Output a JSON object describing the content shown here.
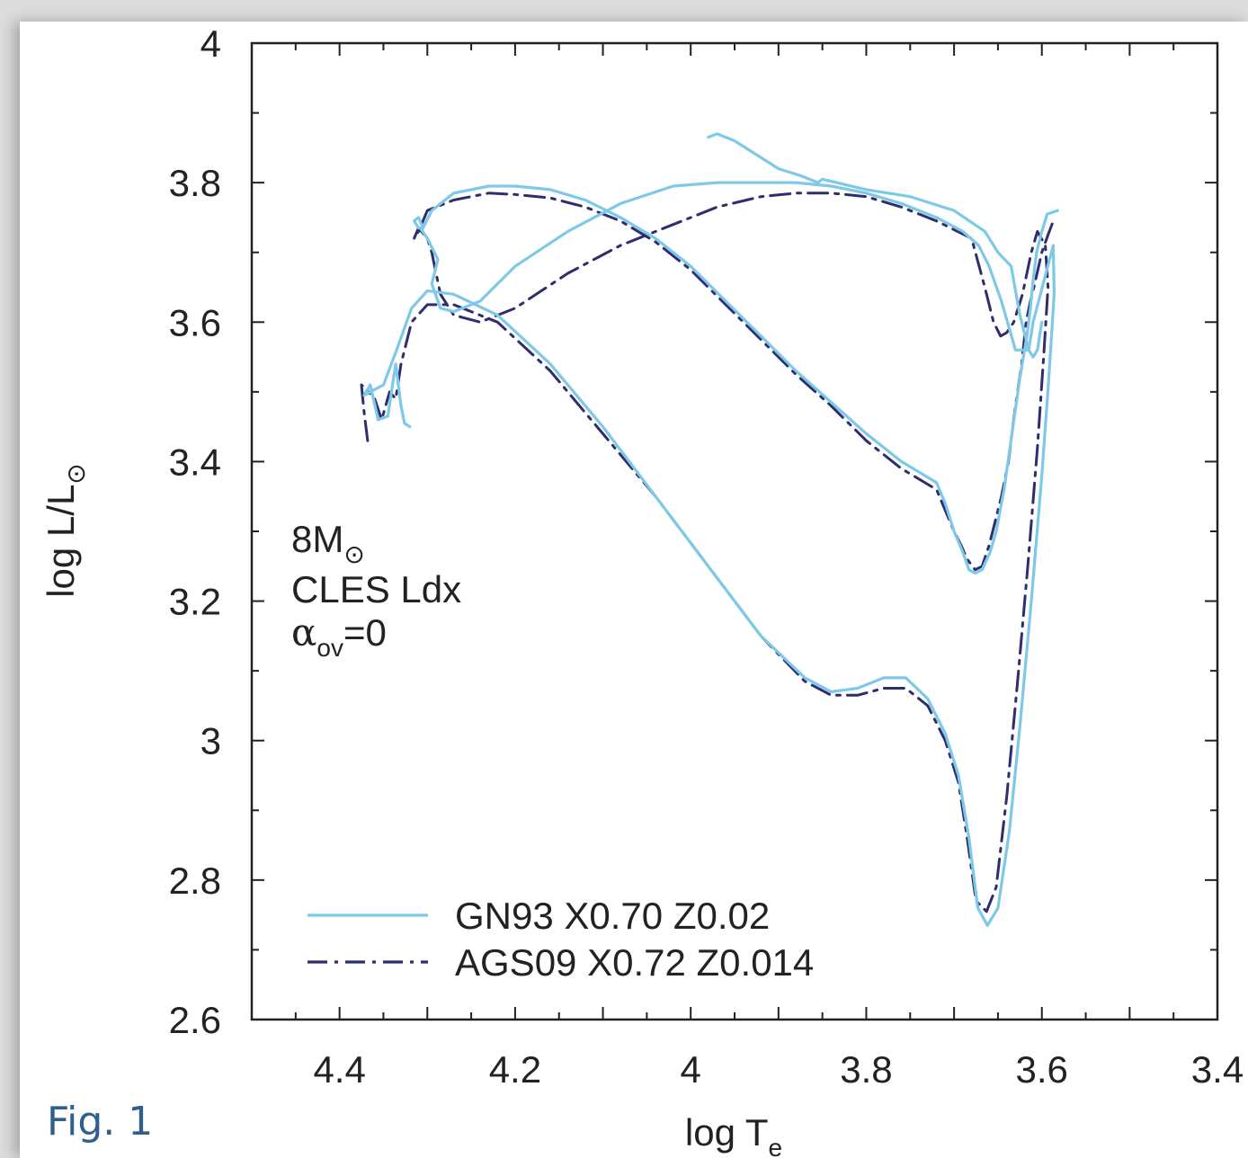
{
  "figure_label": "Fig. 1",
  "chart_data": {
    "type": "line",
    "title": "",
    "xlabel": "log T",
    "xlabel_sub": "e",
    "ylabel": "log L/L",
    "ylabel_sub": "⊙",
    "xlim": [
      4.5,
      3.4
    ],
    "ylim": [
      2.6,
      4.0
    ],
    "x_reversed": true,
    "xticks": [
      "4.4",
      "4.2",
      "4",
      "3.8",
      "3.6",
      "3.4"
    ],
    "xtick_values": [
      4.4,
      4.2,
      4.0,
      3.8,
      3.6,
      3.4
    ],
    "yticks": [
      "4",
      "3.8",
      "3.6",
      "3.4",
      "3.2",
      "3",
      "2.8",
      "2.6"
    ],
    "ytick_values": [
      4.0,
      3.8,
      3.6,
      3.4,
      3.2,
      3.0,
      2.8,
      2.6
    ],
    "grid": false,
    "annotation": {
      "line1": "8M",
      "line1_sub": "⊙",
      "line2": "CLES Ldx",
      "line3_greek": "α",
      "line3_sub": "ov",
      "line3_rest": "=0"
    },
    "legend_position": "bottom-left",
    "series": [
      {
        "name": "GN93 X0.70 Z0.02",
        "color": "#7ec8e8",
        "style": "solid",
        "x": [
          4.32,
          4.326,
          4.33,
          4.336,
          4.345,
          4.356,
          4.365,
          4.372,
          4.365,
          4.35,
          4.335,
          4.318,
          4.3,
          4.27,
          4.22,
          4.16,
          4.1,
          4.04,
          3.98,
          3.92,
          3.87,
          3.84,
          3.81,
          3.78,
          3.755,
          3.73,
          3.71,
          3.695,
          3.683,
          3.673,
          3.662,
          3.65,
          3.637,
          3.625,
          3.612,
          3.6,
          3.592,
          3.586,
          3.587,
          3.61,
          3.615,
          3.63,
          3.646,
          3.66,
          3.672,
          3.69,
          3.72,
          3.76,
          3.8,
          3.84,
          3.88,
          3.92,
          3.97,
          4.02,
          4.08,
          4.14,
          4.2,
          4.24,
          4.27,
          4.285,
          4.295,
          4.288,
          4.3,
          4.308,
          4.31,
          4.315,
          4.31,
          4.305,
          4.295,
          4.27,
          4.23,
          4.2,
          4.16,
          4.12,
          4.08,
          4.04,
          4.0,
          3.96,
          3.92,
          3.88,
          3.84,
          3.8,
          3.76,
          3.72,
          3.71,
          3.7,
          3.69,
          3.683,
          3.676,
          3.668,
          3.659,
          3.652,
          3.643,
          3.634,
          3.625,
          3.617,
          3.613,
          3.61,
          3.606,
          3.6,
          3.594,
          3.582
        ],
        "y": [
          3.45,
          3.455,
          3.48,
          3.54,
          3.465,
          3.46,
          3.51,
          3.495,
          3.5,
          3.51,
          3.56,
          3.62,
          3.645,
          3.64,
          3.61,
          3.54,
          3.45,
          3.35,
          3.25,
          3.15,
          3.09,
          3.07,
          3.075,
          3.09,
          3.09,
          3.06,
          3.01,
          2.95,
          2.86,
          2.76,
          2.735,
          2.76,
          2.87,
          3.02,
          3.2,
          3.38,
          3.52,
          3.64,
          3.71,
          3.6,
          3.56,
          3.56,
          3.63,
          3.68,
          3.71,
          3.73,
          3.75,
          3.77,
          3.785,
          3.795,
          3.8,
          3.8,
          3.8,
          3.795,
          3.77,
          3.73,
          3.68,
          3.63,
          3.615,
          3.62,
          3.655,
          3.69,
          3.72,
          3.735,
          3.735,
          3.745,
          3.75,
          3.735,
          3.76,
          3.785,
          3.795,
          3.795,
          3.79,
          3.775,
          3.75,
          3.72,
          3.68,
          3.63,
          3.58,
          3.53,
          3.485,
          3.44,
          3.4,
          3.37,
          3.34,
          3.3,
          3.27,
          3.245,
          3.24,
          3.245,
          3.27,
          3.3,
          3.36,
          3.44,
          3.52,
          3.58,
          3.62,
          3.66,
          3.7,
          3.73,
          3.755,
          3.76
        ]
      },
      {
        "name": "AGS09 X0.72 Z0.014",
        "color": "#2e2e6e",
        "style": "dashdot",
        "x": [
          4.368,
          4.372,
          4.375,
          4.367,
          4.36,
          4.352,
          4.343,
          4.336,
          4.33,
          4.318,
          4.3,
          4.27,
          4.22,
          4.16,
          4.1,
          4.04,
          3.98,
          3.92,
          3.87,
          3.84,
          3.81,
          3.78,
          3.755,
          3.73,
          3.71,
          3.695,
          3.685,
          3.675,
          3.663,
          3.652,
          3.64,
          3.628,
          3.616,
          3.605,
          3.598,
          3.593,
          3.596,
          3.605,
          3.612,
          3.622,
          3.632,
          3.64,
          3.647,
          3.655,
          3.665,
          3.68,
          3.72,
          3.76,
          3.8,
          3.84,
          3.88,
          3.92,
          3.97,
          4.02,
          4.08,
          4.14,
          4.2,
          4.24,
          4.27,
          4.285,
          4.29,
          4.295,
          4.3,
          4.31,
          4.315,
          4.31,
          4.3,
          4.27,
          4.23,
          4.2,
          4.16,
          4.12,
          4.08,
          4.04,
          4.0,
          3.96,
          3.92,
          3.88,
          3.84,
          3.8,
          3.76,
          3.72,
          3.71,
          3.7,
          3.692,
          3.685,
          3.676,
          3.668,
          3.66,
          3.654,
          3.646,
          3.638,
          3.63,
          3.623,
          3.618,
          3.613,
          3.609,
          3.6,
          3.593,
          3.587
        ],
        "y": [
          3.43,
          3.47,
          3.51,
          3.5,
          3.49,
          3.46,
          3.5,
          3.49,
          3.54,
          3.6,
          3.625,
          3.625,
          3.6,
          3.53,
          3.44,
          3.35,
          3.25,
          3.15,
          3.085,
          3.065,
          3.065,
          3.075,
          3.075,
          3.05,
          3.0,
          2.94,
          2.86,
          2.77,
          2.755,
          2.79,
          2.92,
          3.08,
          3.25,
          3.42,
          3.55,
          3.65,
          3.71,
          3.73,
          3.7,
          3.64,
          3.6,
          3.585,
          3.58,
          3.6,
          3.65,
          3.72,
          3.745,
          3.765,
          3.78,
          3.785,
          3.785,
          3.78,
          3.765,
          3.74,
          3.71,
          3.67,
          3.62,
          3.6,
          3.61,
          3.64,
          3.67,
          3.7,
          3.72,
          3.735,
          3.72,
          3.73,
          3.76,
          3.775,
          3.785,
          3.783,
          3.778,
          3.765,
          3.745,
          3.715,
          3.675,
          3.625,
          3.575,
          3.525,
          3.48,
          3.43,
          3.39,
          3.36,
          3.33,
          3.3,
          3.28,
          3.26,
          3.245,
          3.25,
          3.28,
          3.31,
          3.35,
          3.4,
          3.48,
          3.54,
          3.6,
          3.63,
          3.65,
          3.7,
          3.725,
          3.745
        ]
      },
      {
        "name": "",
        "color": "#7ec8e8",
        "style": "solid",
        "x": [
          3.98,
          3.97,
          3.95,
          3.925,
          3.9,
          3.875,
          3.855,
          3.85,
          3.8,
          3.75,
          3.7,
          3.665,
          3.65,
          3.635,
          3.625,
          3.615,
          3.61,
          3.605,
          3.6
        ],
        "y": [
          3.865,
          3.87,
          3.86,
          3.84,
          3.82,
          3.81,
          3.8,
          3.805,
          3.79,
          3.78,
          3.76,
          3.73,
          3.7,
          3.68,
          3.61,
          3.56,
          3.55,
          3.56,
          3.6
        ]
      }
    ]
  }
}
